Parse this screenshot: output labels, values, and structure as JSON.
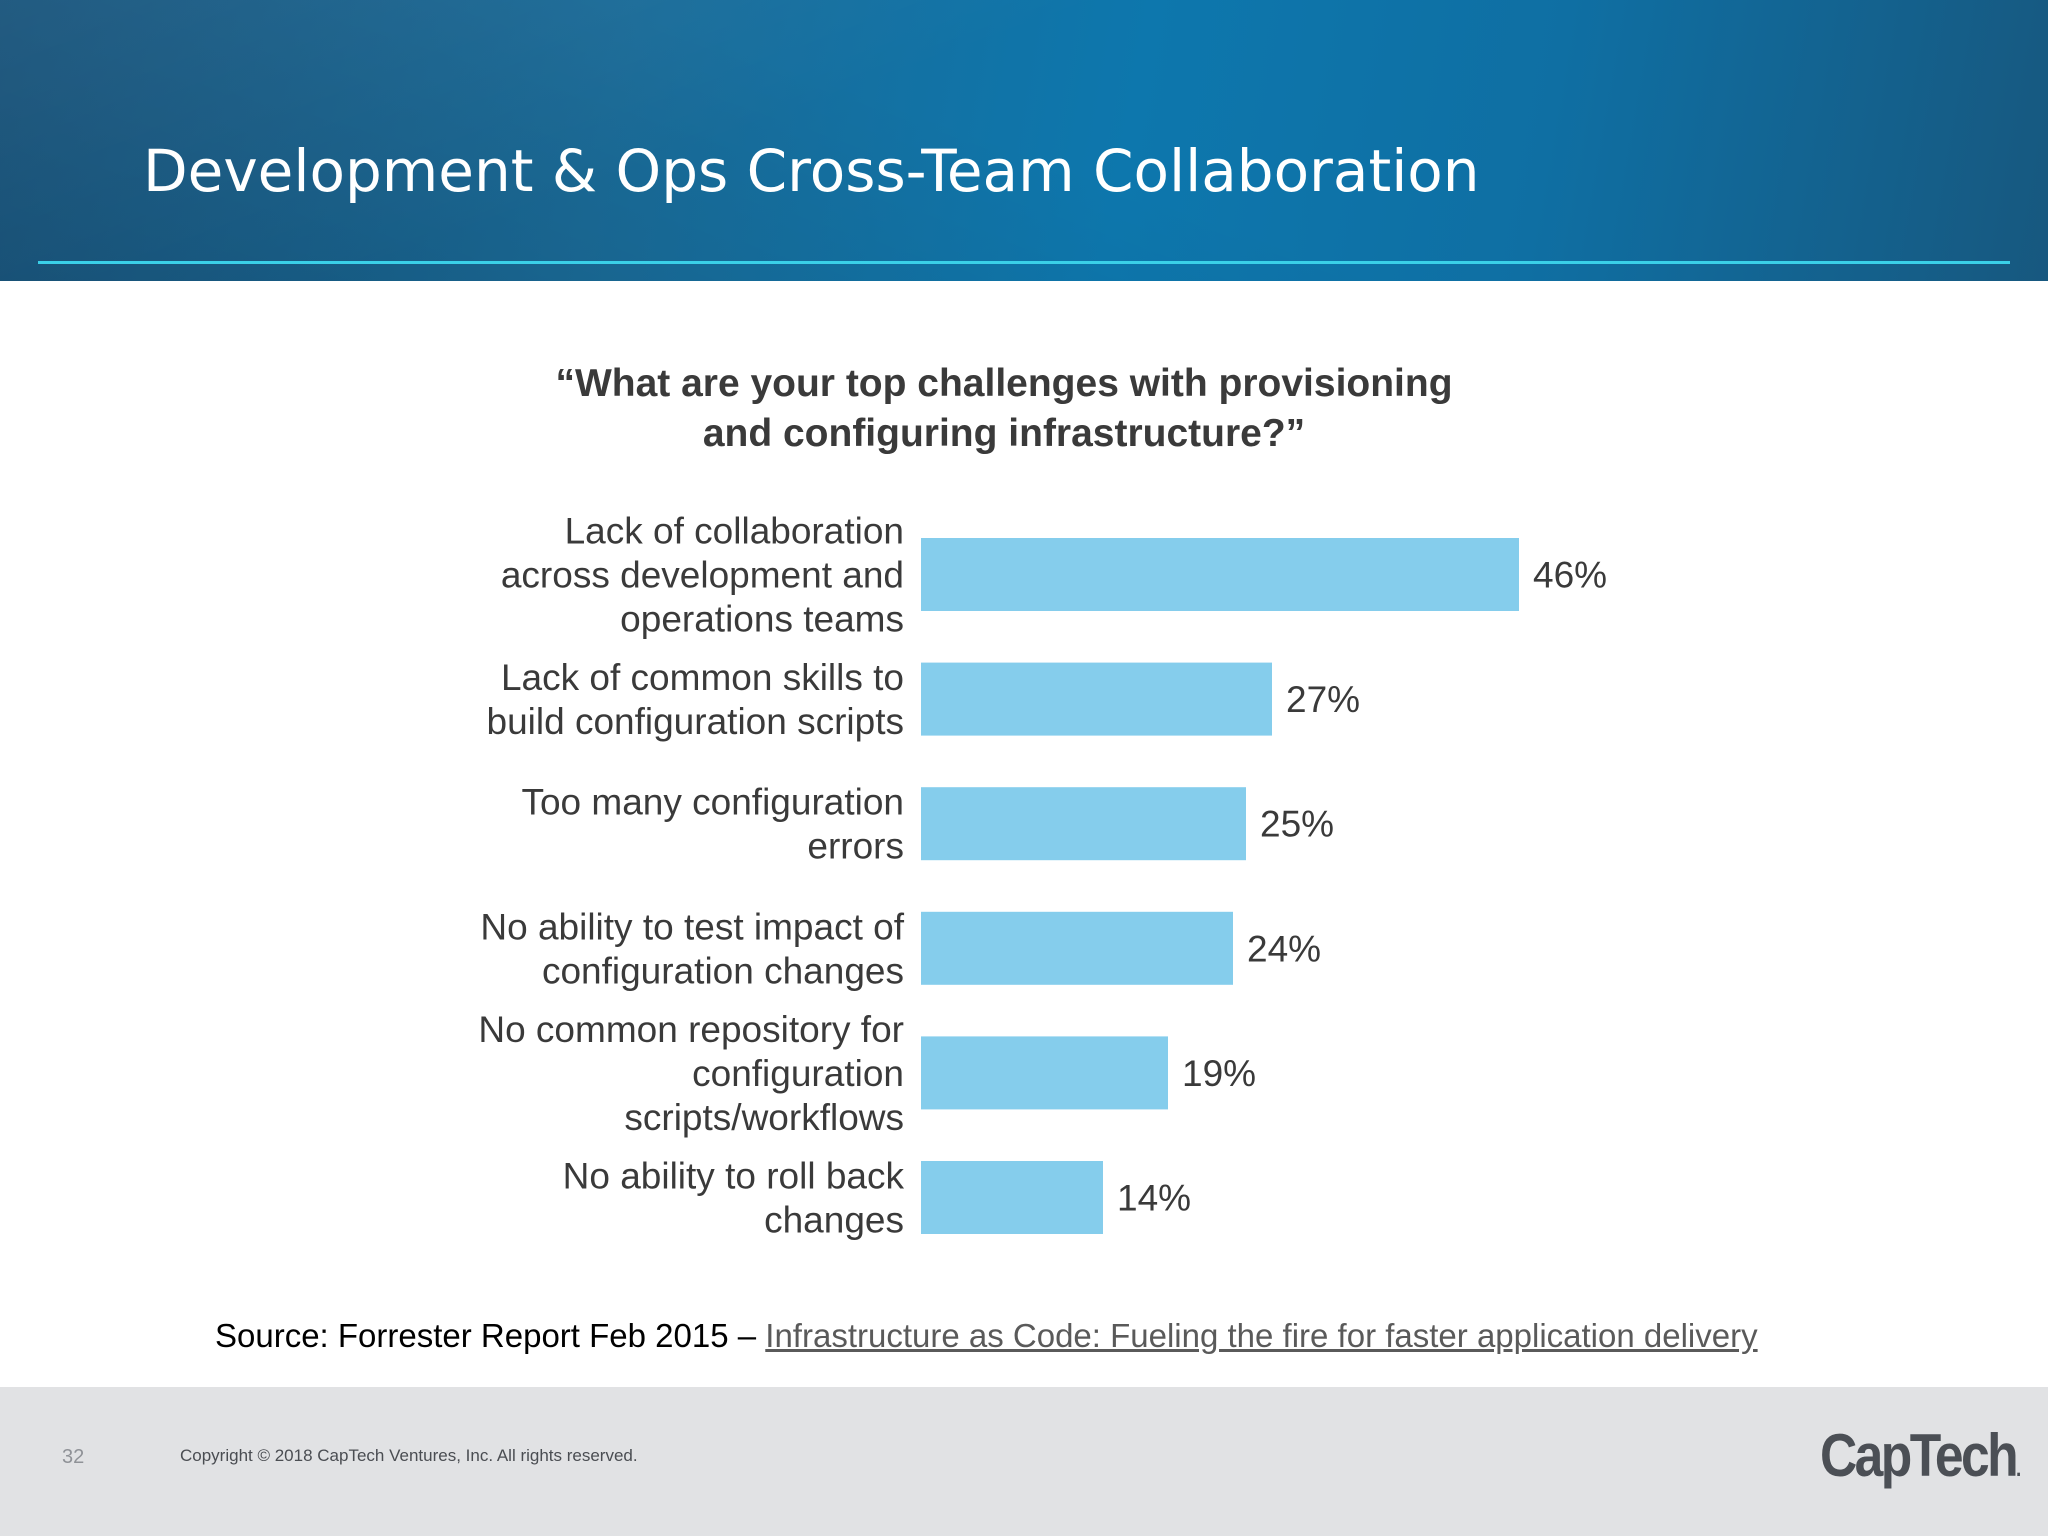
{
  "slide": {
    "title": "Development & Ops Cross-Team Collaboration",
    "page_number": "32",
    "copyright": "Copyright © 2018 CapTech Ventures, Inc. All rights reserved.",
    "logo_text": "CapTech",
    "logo_dot": "."
  },
  "source": {
    "prefix": "Source: Forrester Report Feb 2015 – ",
    "link_text": "Infrastructure as Code: Fueling the fire for faster application delivery"
  },
  "colors": {
    "bar": "#85cdec",
    "title_rule": "#3ad0e8",
    "header_blue": "#1a6b98",
    "footer_gray": "#e1e2e4"
  },
  "chart_data": {
    "type": "bar",
    "orientation": "horizontal",
    "title_lines": [
      "“What are your top challenges with provisioning",
      "and configuring infrastructure?”"
    ],
    "categories": [
      [
        "Lack of collaboration",
        "across development and",
        "operations teams"
      ],
      [
        "Lack of common skills to",
        "build configuration scripts"
      ],
      [
        "Too many configuration",
        "errors"
      ],
      [
        "No ability to test impact of",
        "configuration changes"
      ],
      [
        "No common repository for",
        "configuration",
        "scripts/workflows"
      ],
      [
        "No ability to roll back",
        "changes"
      ]
    ],
    "values": [
      46,
      27,
      25,
      24,
      19,
      14
    ],
    "value_labels": [
      "46%",
      "27%",
      "25%",
      "24%",
      "19%",
      "14%"
    ],
    "unit": "%",
    "grid": false,
    "legend": "none"
  }
}
